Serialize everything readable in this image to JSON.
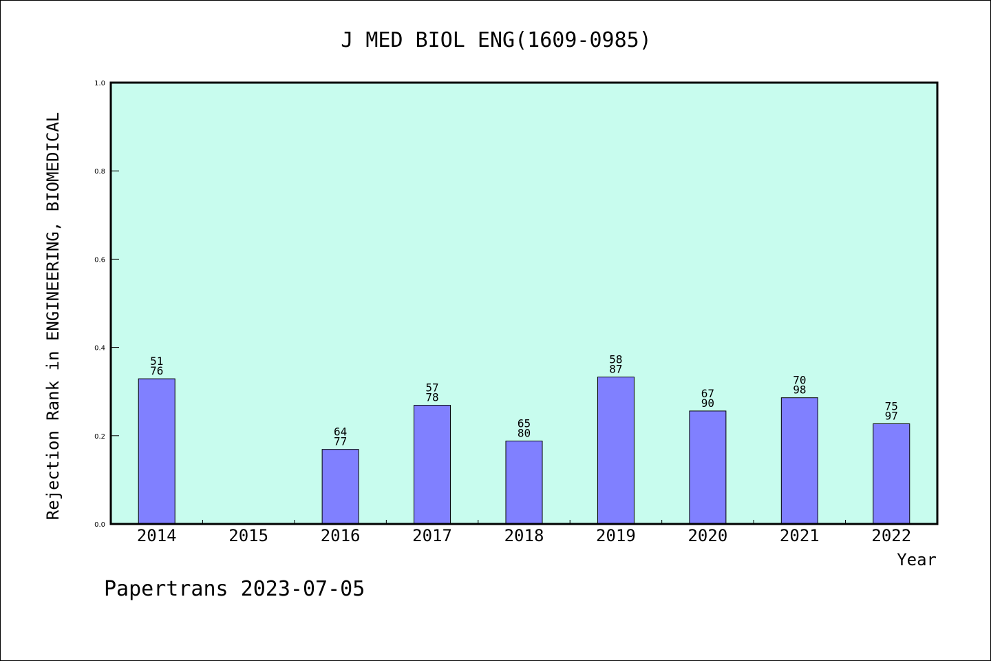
{
  "chart_data": {
    "type": "bar",
    "title": "J MED BIOL ENG(1609-0985)",
    "xlabel": "Year",
    "ylabel": "Rejection Rank in ENGINEERING, BIOMEDICAL",
    "ylim": [
      0,
      1.0
    ],
    "yticks": [
      "0.0",
      "0.2",
      "0.4",
      "0.6",
      "0.8",
      "1.0"
    ],
    "categories": [
      "2014",
      "2015",
      "2016",
      "2017",
      "2018",
      "2019",
      "2020",
      "2021",
      "2022"
    ],
    "values": [
      0.329,
      null,
      0.169,
      0.269,
      0.188,
      0.333,
      0.256,
      0.286,
      0.227
    ],
    "labels": [
      {
        "rank": "51",
        "total": "76"
      },
      null,
      {
        "rank": "64",
        "total": "77"
      },
      {
        "rank": "57",
        "total": "78"
      },
      {
        "rank": "65",
        "total": "80"
      },
      {
        "rank": "58",
        "total": "87"
      },
      {
        "rank": "67",
        "total": "90"
      },
      {
        "rank": "70",
        "total": "98"
      },
      {
        "rank": "75",
        "total": "97"
      }
    ],
    "grid": false,
    "colors": {
      "plot_background": "#c8fcee",
      "bar_fill": "#8080ff",
      "bar_stroke": "#000000"
    }
  },
  "footer": "Papertrans 2023-07-05"
}
